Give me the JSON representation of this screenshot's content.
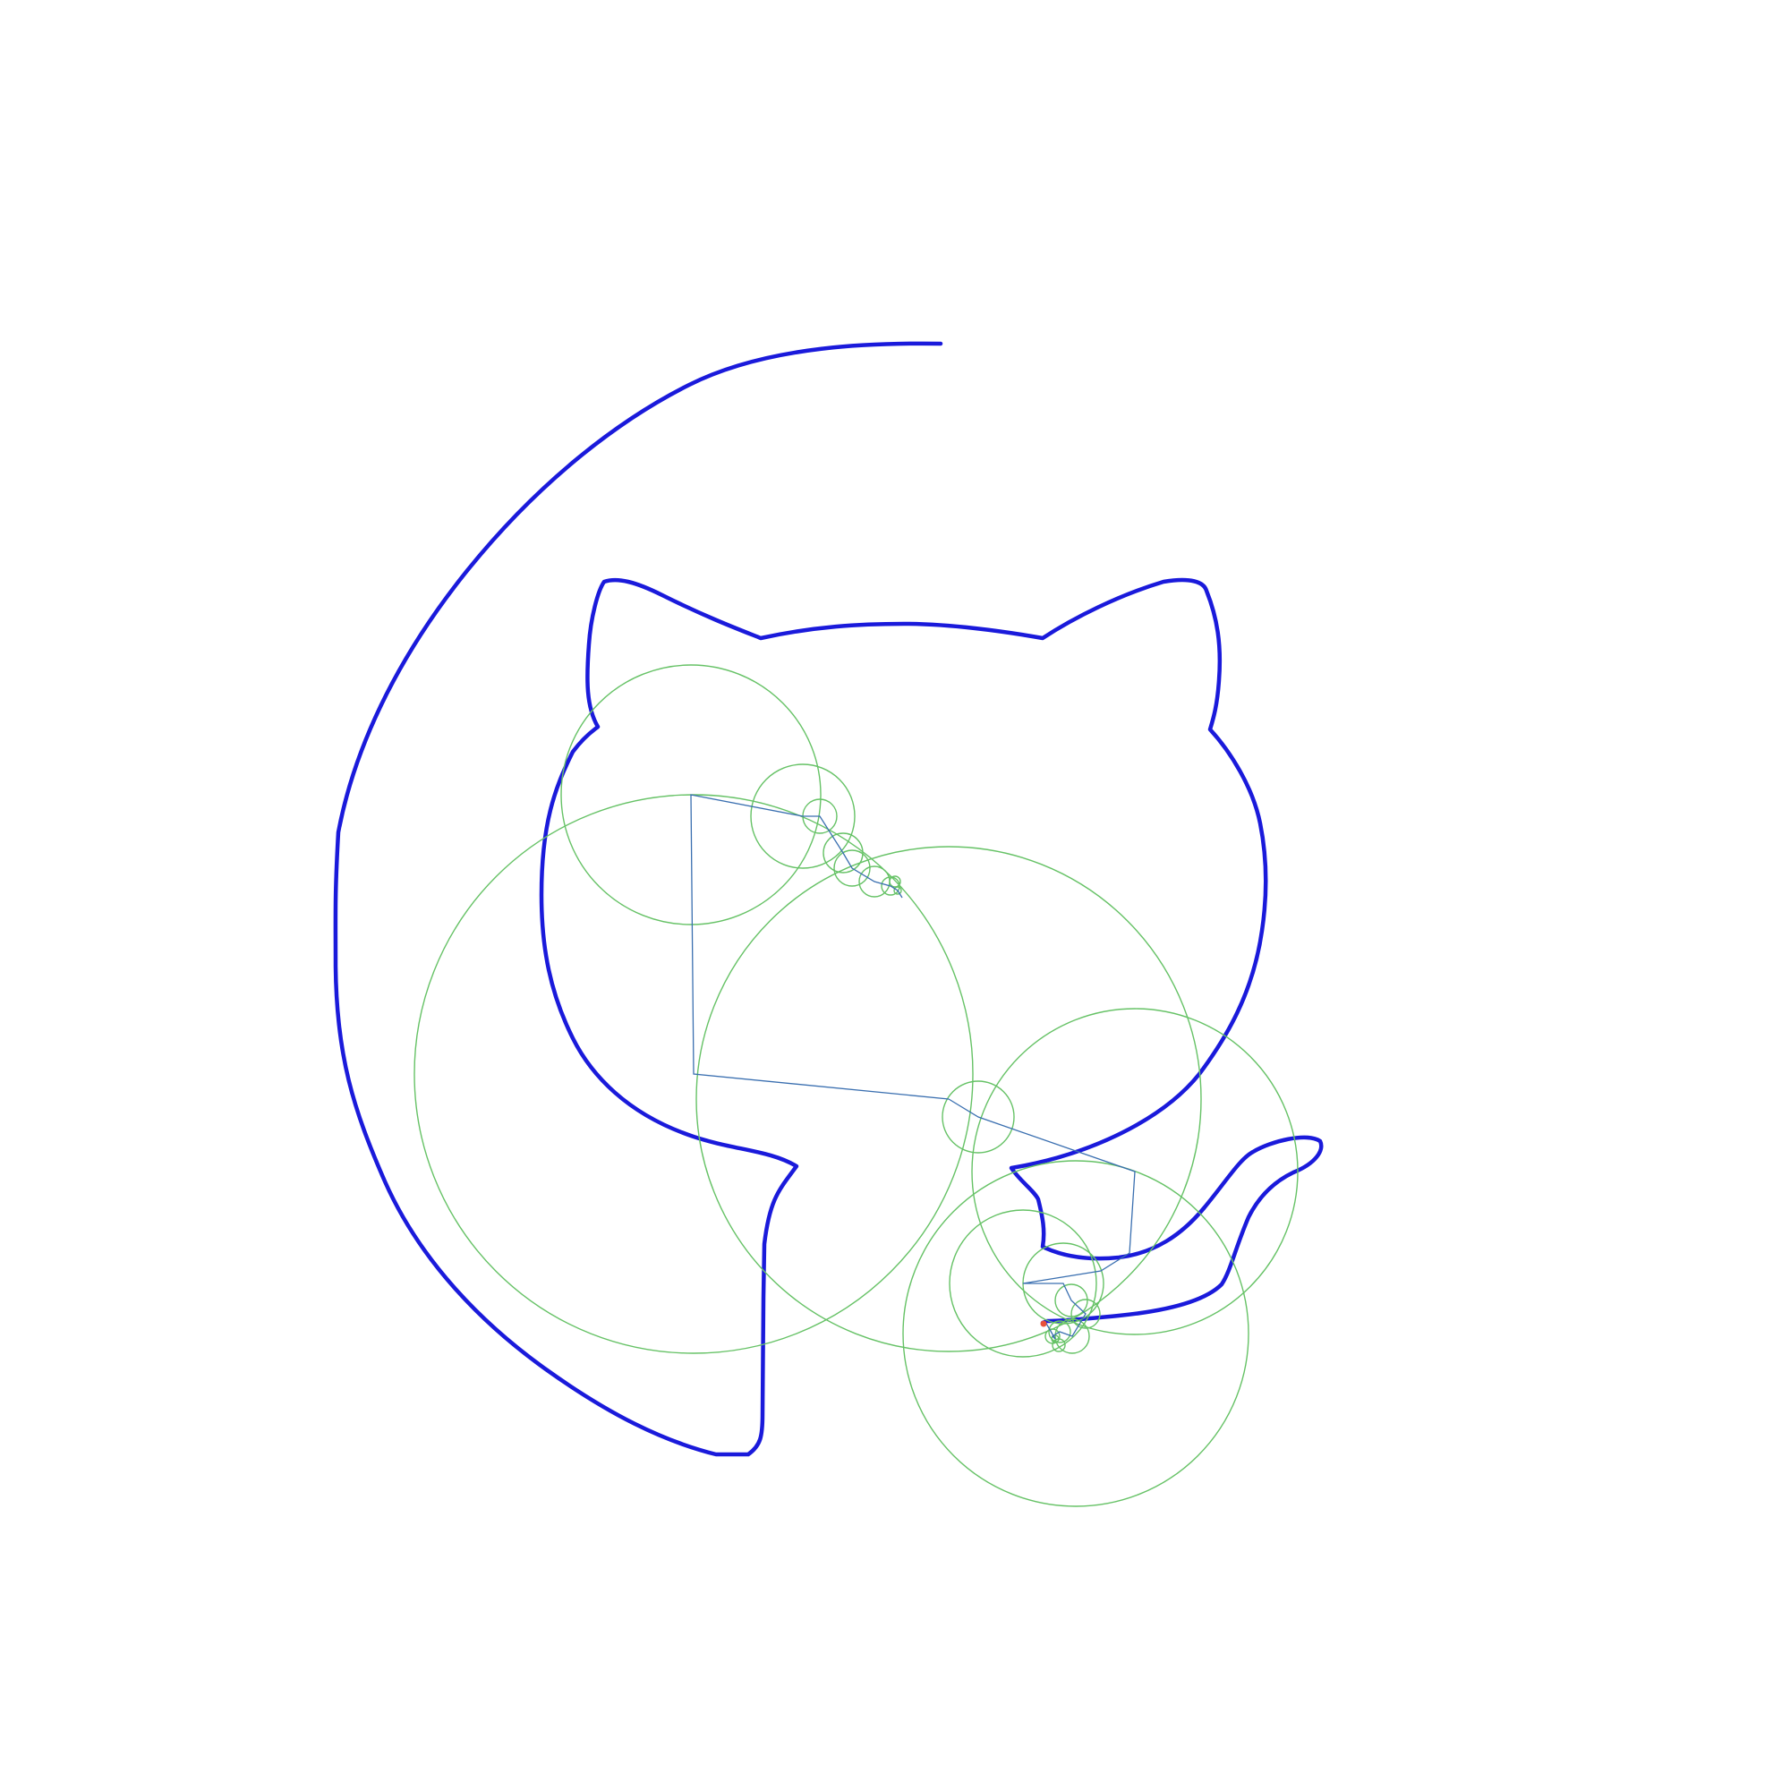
{
  "colors": {
    "background": "#ffffff",
    "trace": "#1a1adb",
    "epicycle_circles": "#66c266",
    "arm_segments": "#3a6fb0",
    "pen_tip": "#e8513a"
  },
  "diagram": {
    "type": "fourier-epicycle-drawing",
    "subject": "octocat-outline",
    "circles_visible": true,
    "arms_visible": true,
    "trace_complete": false,
    "labels": []
  }
}
